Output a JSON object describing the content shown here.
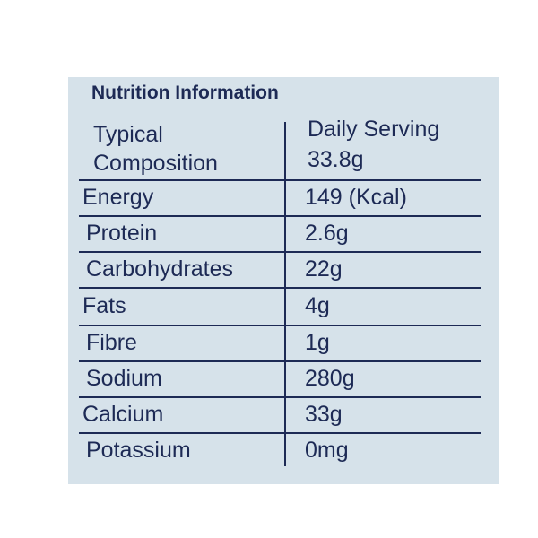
{
  "title": "Nutrition Information",
  "table": {
    "header": {
      "left": [
        "Typical",
        "Composition"
      ],
      "right": [
        "Daily Serving",
        "33.8g"
      ]
    },
    "rows": [
      [
        "Energy",
        "149 (Kcal)"
      ],
      [
        "Protein",
        "2.6g"
      ],
      [
        "Carbohydrates",
        "22g"
      ],
      [
        "Fats",
        "4g"
      ],
      [
        "Fibre",
        "1g"
      ],
      [
        "Sodium",
        "280g"
      ],
      [
        "Calcium",
        "33g"
      ],
      [
        "Potassium",
        "0mg"
      ]
    ]
  }
}
